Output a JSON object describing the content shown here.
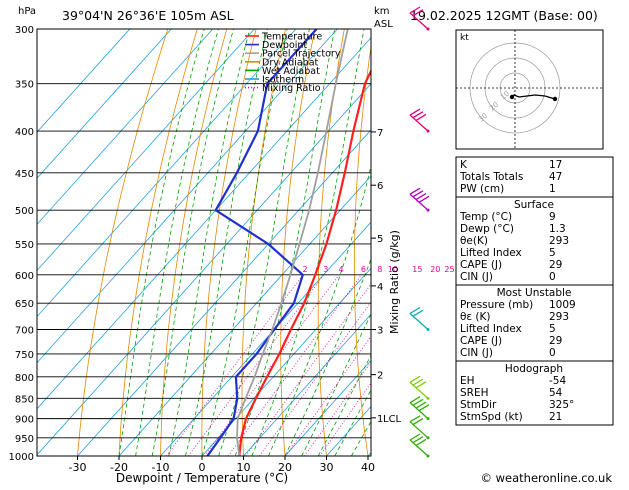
{
  "header": {
    "hpa_label": "hPa",
    "location": "39°04'N  26°36'E  105m  ASL",
    "km_label": "km",
    "asl_label": "ASL",
    "datetime": "19.02.2025  12GMT  (Base: 00)"
  },
  "legend": [
    {
      "label": "Temperature",
      "color": "#ff2020",
      "style": "solid"
    },
    {
      "label": "Dewpoint",
      "color": "#2030d0",
      "style": "solid"
    },
    {
      "label": "Parcel Trajectory",
      "color": "#a0a0a0",
      "style": "solid"
    },
    {
      "label": "Dry Adiabat",
      "color": "#e08a00",
      "style": "solid"
    },
    {
      "label": "Wet Adiabat",
      "color": "#00a000",
      "style": "solid"
    },
    {
      "label": "Isotherm",
      "color": "#20a0e0",
      "style": "solid"
    },
    {
      "label": "Mixing Ratio",
      "color": "#e000a0",
      "style": "dotted"
    }
  ],
  "chart_data": {
    "type": "line",
    "xlabel": "Dewpoint / Temperature (°C)",
    "ylabel_right": "Mixing Ratio (g/kg)",
    "pressure_levels": [
      300,
      350,
      400,
      450,
      500,
      550,
      600,
      650,
      700,
      750,
      800,
      850,
      900,
      950,
      1000
    ],
    "x_ticks": [
      -30,
      -20,
      -10,
      0,
      10,
      20,
      30,
      40
    ],
    "km_ticks": [
      {
        "label": "7",
        "p": 401
      },
      {
        "label": "6",
        "p": 466
      },
      {
        "label": "5",
        "p": 541
      },
      {
        "label": "4",
        "p": 619
      },
      {
        "label": "3",
        "p": 700
      },
      {
        "label": "2",
        "p": 795
      },
      {
        "label": "1",
        "p": 898
      }
    ],
    "lcl": {
      "label": "LCL",
      "p": 898
    },
    "mixing_ratio_labels": [
      "2",
      "3",
      "4",
      "6",
      "8",
      "10",
      "15",
      "20",
      "25"
    ],
    "series": [
      {
        "name": "Temperature",
        "color": "#ff2020",
        "points": [
          [
            1000,
            9
          ],
          [
            950,
            5.5
          ],
          [
            900,
            2.5
          ],
          [
            850,
            0.5
          ],
          [
            800,
            -1.5
          ],
          [
            750,
            -3.5
          ],
          [
            700,
            -6
          ],
          [
            650,
            -8.5
          ],
          [
            600,
            -12
          ],
          [
            550,
            -16
          ],
          [
            500,
            -21
          ],
          [
            450,
            -27
          ],
          [
            400,
            -34
          ],
          [
            350,
            -41.5
          ],
          [
            300,
            -47
          ]
        ]
      },
      {
        "name": "Dewpoint",
        "color": "#2030d0",
        "points": [
          [
            1000,
            1.3
          ],
          [
            950,
            0.5
          ],
          [
            900,
            -0.5
          ],
          [
            850,
            -4
          ],
          [
            800,
            -9
          ],
          [
            750,
            -9
          ],
          [
            700,
            -10
          ],
          [
            650,
            -11
          ],
          [
            600,
            -15
          ],
          [
            550,
            -30
          ],
          [
            500,
            -50
          ],
          [
            450,
            -53
          ],
          [
            400,
            -57
          ],
          [
            350,
            -65
          ],
          [
            300,
            -65
          ]
        ]
      },
      {
        "name": "Parcel Trajectory",
        "color": "#a0a0a0",
        "points": [
          [
            1000,
            9
          ],
          [
            950,
            4.5
          ],
          [
            900,
            0.5
          ],
          [
            850,
            -2
          ],
          [
            800,
            -4.5
          ],
          [
            750,
            -7.5
          ],
          [
            700,
            -10.5
          ],
          [
            650,
            -14
          ],
          [
            600,
            -18
          ],
          [
            550,
            -22.5
          ],
          [
            500,
            -27.5
          ],
          [
            450,
            -33.5
          ],
          [
            400,
            -40.5
          ],
          [
            350,
            -48.5
          ],
          [
            300,
            -57.5
          ]
        ]
      }
    ]
  },
  "hodograph": {
    "unit_label": "kt",
    "ring_labels": [
      "10",
      "20",
      "30"
    ]
  },
  "indices_table": [
    [
      "K",
      "17"
    ],
    [
      "Totals Totals",
      "47"
    ],
    [
      "PW (cm)",
      "1"
    ]
  ],
  "surface_table": {
    "title": "Surface",
    "rows": [
      [
        "Temp (°C)",
        "9"
      ],
      [
        "Dewp (°C)",
        "1.3"
      ],
      [
        "θe(K)",
        "293"
      ],
      [
        "Lifted Index",
        "5"
      ],
      [
        "CAPE (J)",
        "29"
      ],
      [
        "CIN (J)",
        "0"
      ]
    ]
  },
  "unstable_table": {
    "title": "Most Unstable",
    "rows": [
      [
        "Pressure (mb)",
        "1009"
      ],
      [
        "θε (K)",
        "293"
      ],
      [
        "Lifted Index",
        "5"
      ],
      [
        "CAPE (J)",
        "29"
      ],
      [
        "CIN (J)",
        "0"
      ]
    ]
  },
  "hodo_table": {
    "title": "Hodograph",
    "rows": [
      [
        "EH",
        "-54"
      ],
      [
        "SREH",
        "54"
      ],
      [
        "StmDir",
        "325°"
      ],
      [
        "StmSpd (kt)",
        "21"
      ]
    ]
  },
  "copyright": "© weatheronline.co.uk"
}
